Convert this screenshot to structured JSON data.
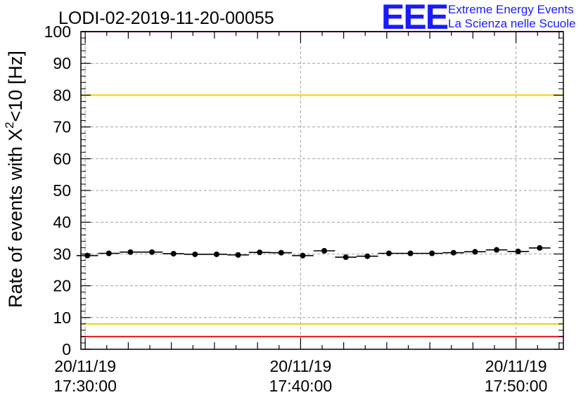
{
  "chart_data": {
    "type": "scatter",
    "title": "LODI-02-2019-11-20-00055",
    "ylabel_main": "Rate of events with X",
    "ylabel_sup": "2",
    "ylabel_tail": "<10 [Hz]",
    "xlabel": "",
    "ylim": [
      0,
      100
    ],
    "yticks": [
      0,
      10,
      20,
      30,
      40,
      50,
      60,
      70,
      80,
      90,
      100
    ],
    "xlim_minutes": [
      -0.2,
      22.2
    ],
    "xticks": [
      {
        "minute": 0,
        "date": "20/11/19",
        "time": "17:30:00"
      },
      {
        "minute": 10,
        "date": "20/11/19",
        "time": "17:40:00"
      },
      {
        "minute": 20,
        "date": "20/11/19",
        "time": "17:50:00"
      }
    ],
    "grid": true,
    "points_x_minutes": [
      0.1,
      1.1,
      2.1,
      3.1,
      4.1,
      5.1,
      6.1,
      7.1,
      8.1,
      9.1,
      10.1,
      11.1,
      12.1,
      13.1,
      14.1,
      15.1,
      16.1,
      17.1,
      18.1,
      19.1,
      20.1,
      21.1
    ],
    "points_y": [
      29.5,
      30.2,
      30.6,
      30.6,
      30.1,
      29.9,
      29.9,
      29.7,
      30.5,
      30.4,
      29.5,
      31.0,
      29.0,
      29.3,
      30.2,
      30.2,
      30.2,
      30.4,
      30.7,
      31.3,
      30.8,
      31.9
    ],
    "bin_halfwidth_minutes": 0.5,
    "reference_lines": [
      {
        "y": 80,
        "color": "#f5d000"
      },
      {
        "y": 8,
        "color": "#f5d000"
      },
      {
        "y": 100,
        "color": "#e8181c"
      },
      {
        "y": 4,
        "color": "#e8181c"
      }
    ]
  },
  "logo": {
    "mark": "EEE",
    "line1": "Extreme Energy Events",
    "line2": "La Scienza nelle Scuole",
    "color": "#1a1aff"
  }
}
